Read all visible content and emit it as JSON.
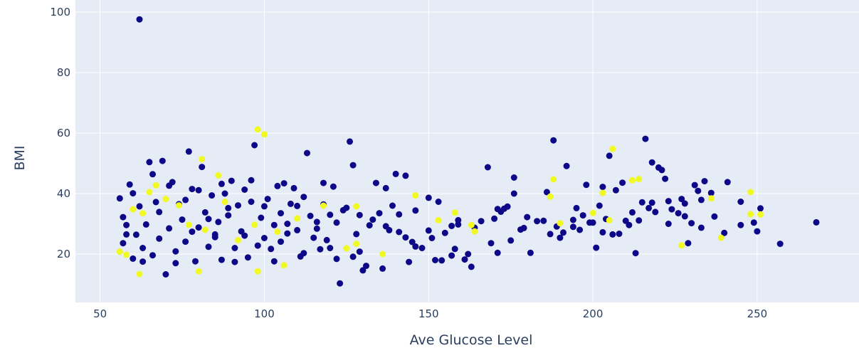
{
  "chart_data": {
    "type": "scatter",
    "title": "",
    "xlabel": "Ave Glucose Level",
    "ylabel": "BMI",
    "xlim": [
      42.5,
      281
    ],
    "ylim": [
      4,
      104
    ],
    "xticks": [
      50,
      100,
      150,
      200,
      250
    ],
    "yticks": [
      20,
      40,
      60,
      80,
      100
    ],
    "grid": true,
    "legend": "none",
    "colors": {
      "plot_bg": "#e5ecf6",
      "grid": "#ffffff",
      "text": "#2a3f5f",
      "series_0": "#0d0887",
      "series_1": "#f0f921"
    },
    "series": [
      {
        "color": "#0d0887",
        "points": [
          [
            62,
            97.6
          ],
          [
            268,
            30.5
          ],
          [
            257,
            23.4
          ],
          [
            250,
            27.5
          ],
          [
            251,
            35.1
          ],
          [
            249,
            30.4
          ],
          [
            245,
            29.6
          ],
          [
            245,
            37.3
          ],
          [
            241,
            43.8
          ],
          [
            240,
            27.0
          ],
          [
            236,
            40.2
          ],
          [
            234,
            44.1
          ],
          [
            233,
            37.9
          ],
          [
            232,
            40.9
          ],
          [
            231,
            42.8
          ],
          [
            230,
            30.2
          ],
          [
            229,
            23.6
          ],
          [
            228,
            36.7
          ],
          [
            227,
            38.2
          ],
          [
            226,
            33.5
          ],
          [
            224,
            34.8
          ],
          [
            223,
            37.5
          ],
          [
            222,
            44.9
          ],
          [
            221,
            47.8
          ],
          [
            220,
            48.6
          ],
          [
            219,
            33.9
          ],
          [
            218,
            50.3
          ],
          [
            217,
            35.2
          ],
          [
            216,
            58.1
          ],
          [
            215,
            37.1
          ],
          [
            213,
            20.3
          ],
          [
            212,
            33.8
          ],
          [
            211,
            29.6
          ],
          [
            210,
            31.0
          ],
          [
            209,
            43.6
          ],
          [
            207,
            41.1
          ],
          [
            206,
            26.5
          ],
          [
            205,
            52.5
          ],
          [
            204,
            31.6
          ],
          [
            203,
            42.2
          ],
          [
            202,
            36.0
          ],
          [
            201,
            22.1
          ],
          [
            200,
            30.4
          ],
          [
            198,
            42.9
          ],
          [
            197,
            32.8
          ],
          [
            196,
            28.0
          ],
          [
            195,
            35.2
          ],
          [
            194,
            29.0
          ],
          [
            192,
            49.1
          ],
          [
            191,
            27.1
          ],
          [
            190,
            25.4
          ],
          [
            188,
            57.6
          ],
          [
            187,
            26.6
          ],
          [
            186,
            40.5
          ],
          [
            185,
            31.0
          ],
          [
            181,
            20.4
          ],
          [
            180,
            32.2
          ],
          [
            178,
            28.1
          ],
          [
            176,
            45.3
          ],
          [
            176,
            40.0
          ],
          [
            175,
            24.5
          ],
          [
            174,
            35.7
          ],
          [
            173,
            35.0
          ],
          [
            172,
            34.0
          ],
          [
            171,
            20.4
          ],
          [
            170,
            31.7
          ],
          [
            169,
            23.6
          ],
          [
            168,
            48.7
          ],
          [
            166,
            30.9
          ],
          [
            163,
            15.8
          ],
          [
            162,
            20.0
          ],
          [
            161,
            18.2
          ],
          [
            159,
            29.8
          ],
          [
            159,
            31.2
          ],
          [
            158,
            21.7
          ],
          [
            157,
            19.5
          ],
          [
            155,
            27.0
          ],
          [
            154,
            17.9
          ],
          [
            153,
            37.3
          ],
          [
            152,
            18.0
          ],
          [
            150,
            27.8
          ],
          [
            150,
            38.6
          ],
          [
            148,
            22.0
          ],
          [
            146,
            22.5
          ],
          [
            145,
            24.0
          ],
          [
            144,
            17.4
          ],
          [
            143,
            45.9
          ],
          [
            143,
            25.5
          ],
          [
            141,
            27.3
          ],
          [
            140,
            46.5
          ],
          [
            139,
            36.0
          ],
          [
            138,
            27.9
          ],
          [
            137,
            41.8
          ],
          [
            136,
            15.2
          ],
          [
            135,
            33.5
          ],
          [
            134,
            43.5
          ],
          [
            132,
            29.5
          ],
          [
            131,
            16.1
          ],
          [
            130,
            14.6
          ],
          [
            129,
            20.8
          ],
          [
            128,
            26.6
          ],
          [
            127,
            49.4
          ],
          [
            126,
            57.2
          ],
          [
            124,
            34.5
          ],
          [
            123,
            10.3
          ],
          [
            122,
            18.4
          ],
          [
            121,
            42.3
          ],
          [
            120,
            33.0
          ],
          [
            119,
            24.6
          ],
          [
            118,
            43.5
          ],
          [
            117,
            21.6
          ],
          [
            116,
            30.6
          ],
          [
            115,
            25.4
          ],
          [
            113,
            53.4
          ],
          [
            112,
            38.9
          ],
          [
            111,
            19.2
          ],
          [
            110,
            27.9
          ],
          [
            109,
            41.8
          ],
          [
            108,
            36.6
          ],
          [
            107,
            30.0
          ],
          [
            106,
            43.4
          ],
          [
            105,
            24.1
          ],
          [
            104,
            42.5
          ],
          [
            103,
            29.6
          ],
          [
            102,
            21.7
          ],
          [
            101,
            38.2
          ],
          [
            100,
            25.3
          ],
          [
            99,
            32.0
          ],
          [
            97,
            56.0
          ],
          [
            96,
            44.4
          ],
          [
            95,
            18.9
          ],
          [
            94,
            41.3
          ],
          [
            93,
            27.5
          ],
          [
            92,
            36.1
          ],
          [
            91,
            22.0
          ],
          [
            90,
            44.2
          ],
          [
            89,
            32.8
          ],
          [
            88,
            40.0
          ],
          [
            87,
            18.1
          ],
          [
            86,
            30.6
          ],
          [
            85,
            25.6
          ],
          [
            84,
            39.4
          ],
          [
            83,
            22.4
          ],
          [
            82,
            33.8
          ],
          [
            81,
            48.8
          ],
          [
            80,
            28.8
          ],
          [
            79,
            17.6
          ],
          [
            78,
            41.5
          ],
          [
            77,
            53.9
          ],
          [
            76,
            24.1
          ],
          [
            75,
            31.4
          ],
          [
            74,
            36.5
          ],
          [
            73,
            20.9
          ],
          [
            72,
            43.8
          ],
          [
            71,
            28.5
          ],
          [
            70,
            13.3
          ],
          [
            69,
            50.8
          ],
          [
            68,
            25.1
          ],
          [
            67,
            37.2
          ],
          [
            66,
            19.6
          ],
          [
            65,
            50.4
          ],
          [
            64,
            29.8
          ],
          [
            63,
            22.0
          ],
          [
            62,
            35.8
          ],
          [
            61,
            26.4
          ],
          [
            60,
            18.5
          ],
          [
            59,
            43.0
          ],
          [
            58,
            29.6
          ],
          [
            57,
            23.6
          ],
          [
            56,
            38.4
          ],
          [
            57,
            32.2
          ],
          [
            58,
            26.5
          ],
          [
            60,
            40.1
          ],
          [
            63,
            17.5
          ],
          [
            66,
            46.4
          ],
          [
            68,
            33.9
          ],
          [
            71,
            42.6
          ],
          [
            73,
            17.0
          ],
          [
            76,
            37.9
          ],
          [
            78,
            27.4
          ],
          [
            80,
            41.1
          ],
          [
            83,
            31.6
          ],
          [
            85,
            26.5
          ],
          [
            87,
            43.2
          ],
          [
            89,
            35.2
          ],
          [
            91,
            17.4
          ],
          [
            94,
            26.1
          ],
          [
            96,
            37.3
          ],
          [
            98,
            22.8
          ],
          [
            100,
            35.8
          ],
          [
            103,
            17.6
          ],
          [
            105,
            33.5
          ],
          [
            107,
            26.8
          ],
          [
            110,
            35.9
          ],
          [
            112,
            20.3
          ],
          [
            114,
            32.6
          ],
          [
            116,
            28.4
          ],
          [
            118,
            36.4
          ],
          [
            120,
            22.0
          ],
          [
            122,
            30.4
          ],
          [
            125,
            35.3
          ],
          [
            127,
            19.1
          ],
          [
            129,
            32.9
          ],
          [
            133,
            31.4
          ],
          [
            137,
            29.2
          ],
          [
            141,
            33.1
          ],
          [
            146,
            34.4
          ],
          [
            151,
            25.3
          ],
          [
            157,
            29.3
          ],
          [
            164,
            28.7
          ],
          [
            171,
            34.9
          ],
          [
            179,
            28.6
          ],
          [
            183,
            30.9
          ],
          [
            189,
            29.1
          ],
          [
            194,
            31.3
          ],
          [
            199,
            30.4
          ],
          [
            203,
            27.2
          ],
          [
            208,
            26.7
          ],
          [
            214,
            31.1
          ],
          [
            218,
            37.0
          ],
          [
            223,
            30.0
          ],
          [
            228,
            32.5
          ],
          [
            233,
            28.7
          ],
          [
            237,
            32.4
          ]
        ]
      },
      {
        "color": "#f0f921",
        "points": [
          [
            98,
            61.2
          ],
          [
            100,
            59.6
          ],
          [
            206,
            54.8
          ],
          [
            81,
            51.4
          ],
          [
            188,
            44.7
          ],
          [
            212,
            44.4
          ],
          [
            214,
            44.8
          ],
          [
            86,
            46.0
          ],
          [
            248,
            40.5
          ],
          [
            146,
            39.4
          ],
          [
            187,
            39.0
          ],
          [
            203,
            40.2
          ],
          [
            236,
            38.4
          ],
          [
            158,
            33.7
          ],
          [
            200,
            33.6
          ],
          [
            248,
            33.2
          ],
          [
            251,
            33.1
          ],
          [
            60,
            34.8
          ],
          [
            63,
            33.5
          ],
          [
            65,
            40.5
          ],
          [
            67,
            42.7
          ],
          [
            70,
            38.2
          ],
          [
            74,
            36.1
          ],
          [
            77,
            29.7
          ],
          [
            82,
            28.0
          ],
          [
            88,
            37.3
          ],
          [
            92,
            24.6
          ],
          [
            97,
            29.7
          ],
          [
            104,
            27.4
          ],
          [
            110,
            31.8
          ],
          [
            118,
            36.0
          ],
          [
            128,
            35.8
          ],
          [
            153,
            31.2
          ],
          [
            163,
            29.6
          ],
          [
            164,
            27.5
          ],
          [
            190,
            30.2
          ],
          [
            205,
            31.2
          ],
          [
            227,
            22.9
          ],
          [
            239,
            25.4
          ],
          [
            56,
            20.8
          ],
          [
            58,
            19.8
          ],
          [
            62,
            13.4
          ],
          [
            80,
            14.3
          ],
          [
            98,
            14.3
          ],
          [
            106,
            16.3
          ],
          [
            125,
            21.9
          ],
          [
            128,
            23.4
          ],
          [
            136,
            20.0
          ]
        ]
      }
    ]
  }
}
